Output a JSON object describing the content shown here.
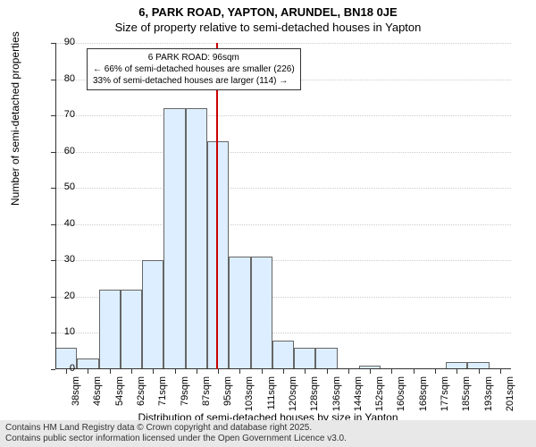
{
  "chart": {
    "type": "histogram",
    "title_main": "6, PARK ROAD, YAPTON, ARUNDEL, BN18 0JE",
    "title_sub": "Size of property relative to semi-detached houses in Yapton",
    "y_axis_label": "Number of semi-detached properties",
    "x_axis_label": "Distribution of semi-detached houses by size in Yapton",
    "title_fontsize": 13,
    "axis_label_fontsize": 12,
    "tick_fontsize": 11,
    "ylim": [
      0,
      90
    ],
    "ytick_step": 10,
    "yticks": [
      0,
      10,
      20,
      30,
      40,
      50,
      60,
      70,
      80,
      90
    ],
    "categories": [
      "38sqm",
      "46sqm",
      "54sqm",
      "62sqm",
      "71sqm",
      "79sqm",
      "87sqm",
      "95sqm",
      "103sqm",
      "111sqm",
      "120sqm",
      "128sqm",
      "136sqm",
      "144sqm",
      "152sqm",
      "160sqm",
      "168sqm",
      "177sqm",
      "185sqm",
      "193sqm",
      "201sqm"
    ],
    "values": [
      6,
      3,
      22,
      22,
      30,
      72,
      72,
      63,
      31,
      31,
      8,
      6,
      6,
      0,
      1,
      0,
      0,
      0,
      2,
      2,
      0
    ],
    "bar_fill_color": "#dceeff",
    "bar_border_color": "#666666",
    "bar_width_ratio": 1.0,
    "background_color": "#ffffff",
    "grid_color": "#cccccc",
    "grid_style": "dotted",
    "reference_line": {
      "position_index": 7.4,
      "color": "#cc0000",
      "width": 2
    },
    "annotation": {
      "line1": "6 PARK ROAD: 96sqm",
      "line2": "← 66% of semi-detached houses are smaller (226)",
      "line3": "33% of semi-detached houses are larger (114) →",
      "border_color": "#333333",
      "background": "#ffffff",
      "fontsize": 10
    },
    "footer": {
      "line1": "Contains HM Land Registry data © Crown copyright and database right 2025.",
      "line2": "Contains public sector information licensed under the Open Government Licence v3.0.",
      "background": "#e8e8e8",
      "fontsize": 10
    }
  }
}
